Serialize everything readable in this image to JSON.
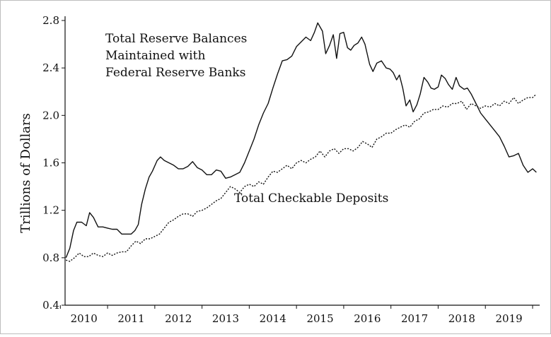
{
  "chart_data": {
    "type": "line",
    "title": "",
    "xlabel": "",
    "ylabel": "Trillions of Dollars",
    "xlim": [
      2009.6,
      2019.65
    ],
    "ylim": [
      0.4,
      2.8
    ],
    "yticks": [
      "0.4",
      "0.8",
      "1.2",
      "1.6",
      "2.0",
      "2.4",
      "2.8"
    ],
    "xticks": [
      "2010",
      "2011",
      "2012",
      "2013",
      "2014",
      "2015",
      "2016",
      "2017",
      "2018",
      "2019"
    ],
    "grid": false,
    "legend": "none",
    "annotations": [
      {
        "id": "reserves",
        "lines": [
          "Total Reserve Balances",
          "Maintained with",
          "Federal Reserve Banks"
        ]
      },
      {
        "id": "deposits",
        "lines": [
          "Total Checkable Deposits"
        ]
      }
    ],
    "series": [
      {
        "name": "Total Reserve Balances Maintained with Federal Reserve Banks",
        "style": "solid",
        "x": [
          2009.62,
          2009.7,
          2009.78,
          2009.85,
          2009.95,
          2010.05,
          2010.12,
          2010.2,
          2010.3,
          2010.4,
          2010.5,
          2010.6,
          2010.7,
          2010.8,
          2010.9,
          2011.0,
          2011.08,
          2011.15,
          2011.22,
          2011.3,
          2011.38,
          2011.45,
          2011.55,
          2011.62,
          2011.7,
          2011.8,
          2011.9,
          2012.0,
          2012.1,
          2012.2,
          2012.3,
          2012.4,
          2012.5,
          2012.6,
          2012.7,
          2012.8,
          2012.9,
          2013.0,
          2013.1,
          2013.2,
          2013.3,
          2013.4,
          2013.5,
          2013.6,
          2013.7,
          2013.8,
          2013.9,
          2014.0,
          2014.1,
          2014.2,
          2014.3,
          2014.4,
          2014.5,
          2014.6,
          2014.7,
          2014.8,
          2014.88,
          2014.95,
          2015.05,
          2015.12,
          2015.2,
          2015.28,
          2015.35,
          2015.42,
          2015.5,
          2015.58,
          2015.65,
          2015.72,
          2015.8,
          2015.88,
          2015.95,
          2016.05,
          2016.12,
          2016.2,
          2016.3,
          2016.4,
          2016.48,
          2016.55,
          2016.62,
          2016.68,
          2016.75,
          2016.82,
          2016.9,
          2016.97,
          2017.05,
          2017.12,
          2017.2,
          2017.28,
          2017.35,
          2017.42,
          2017.5,
          2017.57,
          2017.65,
          2017.72,
          2017.8,
          2017.88,
          2017.95,
          2018.05,
          2018.12,
          2018.2,
          2018.3,
          2018.4,
          2018.5,
          2018.6,
          2018.7,
          2018.8,
          2018.9,
          2019.0,
          2019.1,
          2019.2,
          2019.3,
          2019.4,
          2019.5,
          2019.58
        ],
        "y": [
          0.8,
          0.88,
          1.03,
          1.1,
          1.1,
          1.07,
          1.18,
          1.14,
          1.06,
          1.06,
          1.05,
          1.04,
          1.04,
          1.0,
          1.0,
          1.0,
          1.03,
          1.08,
          1.25,
          1.38,
          1.48,
          1.53,
          1.62,
          1.65,
          1.62,
          1.6,
          1.58,
          1.55,
          1.55,
          1.57,
          1.61,
          1.56,
          1.54,
          1.5,
          1.5,
          1.54,
          1.53,
          1.47,
          1.48,
          1.5,
          1.52,
          1.6,
          1.7,
          1.8,
          1.92,
          2.02,
          2.1,
          2.23,
          2.35,
          2.46,
          2.47,
          2.5,
          2.58,
          2.62,
          2.66,
          2.63,
          2.7,
          2.78,
          2.71,
          2.52,
          2.59,
          2.68,
          2.48,
          2.69,
          2.7,
          2.57,
          2.55,
          2.59,
          2.61,
          2.66,
          2.6,
          2.43,
          2.37,
          2.44,
          2.46,
          2.4,
          2.39,
          2.36,
          2.3,
          2.34,
          2.23,
          2.08,
          2.13,
          2.03,
          2.09,
          2.18,
          2.32,
          2.28,
          2.23,
          2.22,
          2.24,
          2.34,
          2.31,
          2.26,
          2.22,
          2.32,
          2.25,
          2.22,
          2.23,
          2.18,
          2.1,
          2.02,
          1.97,
          1.92,
          1.87,
          1.82,
          1.74,
          1.65,
          1.66,
          1.68,
          1.58,
          1.52,
          1.55,
          1.52
        ],
        "color": "#111111"
      },
      {
        "name": "Total Checkable Deposits",
        "style": "dotted",
        "x": [
          2009.62,
          2009.7,
          2009.8,
          2009.9,
          2010.0,
          2010.1,
          2010.2,
          2010.3,
          2010.4,
          2010.5,
          2010.6,
          2010.7,
          2010.8,
          2010.9,
          2011.0,
          2011.1,
          2011.2,
          2011.3,
          2011.4,
          2011.5,
          2011.6,
          2011.7,
          2011.8,
          2011.9,
          2012.0,
          2012.1,
          2012.2,
          2012.3,
          2012.4,
          2012.5,
          2012.6,
          2012.7,
          2012.8,
          2012.9,
          2013.0,
          2013.1,
          2013.2,
          2013.3,
          2013.4,
          2013.5,
          2013.6,
          2013.7,
          2013.8,
          2013.9,
          2014.0,
          2014.1,
          2014.2,
          2014.3,
          2014.4,
          2014.5,
          2014.6,
          2014.7,
          2014.8,
          2014.9,
          2015.0,
          2015.1,
          2015.2,
          2015.3,
          2015.4,
          2015.5,
          2015.6,
          2015.7,
          2015.8,
          2015.9,
          2016.0,
          2016.1,
          2016.2,
          2016.3,
          2016.4,
          2016.5,
          2016.6,
          2016.7,
          2016.8,
          2016.9,
          2017.0,
          2017.1,
          2017.2,
          2017.3,
          2017.4,
          2017.5,
          2017.6,
          2017.7,
          2017.8,
          2017.9,
          2018.0,
          2018.1,
          2018.2,
          2018.3,
          2018.4,
          2018.5,
          2018.6,
          2018.7,
          2018.8,
          2018.9,
          2019.0,
          2019.1,
          2019.2,
          2019.3,
          2019.4,
          2019.5,
          2019.58
        ],
        "y": [
          0.78,
          0.77,
          0.8,
          0.84,
          0.81,
          0.81,
          0.84,
          0.82,
          0.81,
          0.84,
          0.82,
          0.84,
          0.85,
          0.85,
          0.9,
          0.94,
          0.92,
          0.96,
          0.96,
          0.98,
          1.0,
          1.05,
          1.1,
          1.12,
          1.15,
          1.17,
          1.17,
          1.15,
          1.19,
          1.2,
          1.22,
          1.25,
          1.28,
          1.3,
          1.35,
          1.4,
          1.38,
          1.35,
          1.4,
          1.42,
          1.4,
          1.44,
          1.42,
          1.48,
          1.53,
          1.52,
          1.55,
          1.58,
          1.55,
          1.6,
          1.62,
          1.6,
          1.63,
          1.65,
          1.7,
          1.65,
          1.7,
          1.72,
          1.68,
          1.72,
          1.72,
          1.7,
          1.73,
          1.78,
          1.76,
          1.73,
          1.8,
          1.82,
          1.85,
          1.85,
          1.88,
          1.9,
          1.92,
          1.9,
          1.95,
          1.97,
          2.02,
          2.03,
          2.05,
          2.05,
          2.08,
          2.07,
          2.1,
          2.1,
          2.12,
          2.05,
          2.1,
          2.08,
          2.06,
          2.08,
          2.07,
          2.1,
          2.08,
          2.12,
          2.1,
          2.15,
          2.1,
          2.13,
          2.15,
          2.15,
          2.18
        ],
        "color": "#111111"
      }
    ]
  }
}
